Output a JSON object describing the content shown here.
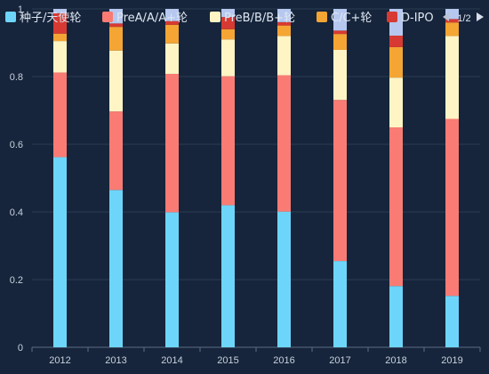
{
  "chart_data": {
    "type": "bar",
    "stacked": true,
    "title": "",
    "xlabel": "",
    "ylabel": "",
    "categories": [
      "2012",
      "2013",
      "2014",
      "2015",
      "2016",
      "2017",
      "2018",
      "2019"
    ],
    "ylim": [
      0,
      1
    ],
    "yticks": [
      "0",
      "0.2",
      "0.4",
      "0.6",
      "0.8",
      "1"
    ],
    "grid": true,
    "legend_position": "top",
    "legend_pager": {
      "text": "1/2",
      "prev_icon": "triangle-left-icon",
      "next_icon": "triangle-right-icon"
    },
    "series": [
      {
        "name": "种子/天使轮",
        "color": "#6dd5fa",
        "values": [
          0.562,
          0.465,
          0.399,
          0.42,
          0.401,
          0.255,
          0.181,
          0.152
        ]
      },
      {
        "name": "PreA/A/A+轮",
        "color": "#f97b73",
        "values": [
          0.25,
          0.232,
          0.409,
          0.381,
          0.403,
          0.476,
          0.469,
          0.523
        ]
      },
      {
        "name": "PreB/B/B+轮",
        "color": "#fef4c4",
        "values": [
          0.093,
          0.18,
          0.09,
          0.109,
          0.116,
          0.148,
          0.147,
          0.245
        ]
      },
      {
        "name": "C/C+轮",
        "color": "#f4a533",
        "values": [
          0.022,
          0.07,
          0.055,
          0.03,
          0.031,
          0.047,
          0.09,
          0.04
        ]
      },
      {
        "name": "D-IPO",
        "color": "#d73a32",
        "values": [
          0.06,
          0.01,
          0.011,
          0.036,
          0.01,
          0.01,
          0.034,
          0.01
        ]
      },
      {
        "name": "",
        "color": "#b6c8ef",
        "values": [
          0.013,
          0.043,
          0.036,
          0.024,
          0.039,
          0.064,
          0.079,
          0.03
        ]
      }
    ]
  }
}
